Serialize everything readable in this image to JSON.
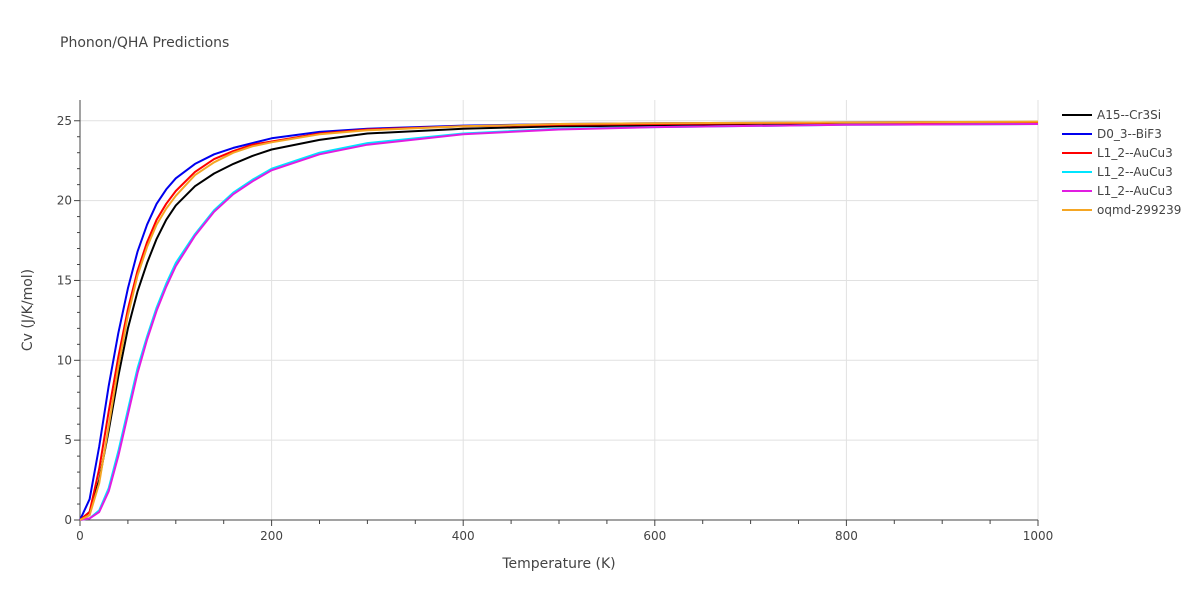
{
  "chart_data": {
    "type": "line",
    "title": "Phonon/QHA Predictions",
    "xlabel": "Temperature (K)",
    "ylabel": "Cv (J/K/mol)",
    "xlim": [
      0,
      1000
    ],
    "ylim": [
      0,
      26.3
    ],
    "xticks": [
      0,
      200,
      400,
      600,
      800,
      1000
    ],
    "yticks": [
      0,
      5,
      10,
      15,
      20,
      25
    ],
    "grid": true,
    "legend_position": "top-right",
    "series": [
      {
        "name": "A15--Cr3Si",
        "color": "#000000",
        "x": [
          0,
          10,
          20,
          30,
          40,
          50,
          60,
          70,
          80,
          90,
          100,
          120,
          140,
          160,
          180,
          200,
          250,
          300,
          400,
          500,
          600,
          800,
          1000
        ],
        "y": [
          0,
          0.5,
          2.5,
          5.6,
          9.0,
          12.0,
          14.3,
          16.1,
          17.6,
          18.8,
          19.7,
          20.9,
          21.7,
          22.3,
          22.8,
          23.2,
          23.8,
          24.2,
          24.5,
          24.65,
          24.7,
          24.8,
          24.85
        ]
      },
      {
        "name": "D0_3--BiF3",
        "color": "#0000ee",
        "x": [
          0,
          10,
          20,
          30,
          40,
          50,
          60,
          70,
          80,
          90,
          100,
          120,
          140,
          160,
          180,
          200,
          250,
          300,
          400,
          500,
          600,
          800,
          1000
        ],
        "y": [
          0,
          1.3,
          4.6,
          8.4,
          11.7,
          14.5,
          16.8,
          18.5,
          19.8,
          20.7,
          21.4,
          22.3,
          22.9,
          23.3,
          23.6,
          23.9,
          24.3,
          24.5,
          24.7,
          24.8,
          24.85,
          24.9,
          24.92
        ]
      },
      {
        "name": "L1_2--AuCu3",
        "color": "#ff0000",
        "x": [
          0,
          10,
          20,
          30,
          40,
          50,
          60,
          70,
          80,
          90,
          100,
          120,
          140,
          160,
          180,
          200,
          250,
          300,
          400,
          500,
          600,
          800,
          1000
        ],
        "y": [
          0,
          0.5,
          3.2,
          6.8,
          10.2,
          13.2,
          15.6,
          17.4,
          18.8,
          19.8,
          20.6,
          21.8,
          22.6,
          23.1,
          23.5,
          23.7,
          24.2,
          24.45,
          24.65,
          24.75,
          24.8,
          24.88,
          24.9
        ]
      },
      {
        "name": "L1_2--AuCu3",
        "color": "#00e5ff",
        "x": [
          0,
          10,
          20,
          30,
          40,
          50,
          60,
          70,
          80,
          90,
          100,
          120,
          140,
          160,
          180,
          200,
          250,
          300,
          400,
          500,
          600,
          800,
          1000
        ],
        "y": [
          0,
          0.1,
          0.6,
          2.0,
          4.3,
          6.9,
          9.5,
          11.5,
          13.3,
          14.8,
          16.1,
          17.9,
          19.4,
          20.5,
          21.3,
          22.0,
          23.0,
          23.6,
          24.2,
          24.5,
          24.6,
          24.75,
          24.8
        ]
      },
      {
        "name": "L1_2--AuCu3",
        "color": "#e11de1",
        "x": [
          0,
          10,
          20,
          30,
          40,
          50,
          60,
          70,
          80,
          90,
          100,
          120,
          140,
          160,
          180,
          200,
          250,
          300,
          400,
          500,
          600,
          800,
          1000
        ],
        "y": [
          0,
          0.1,
          0.5,
          1.8,
          4.0,
          6.6,
          9.2,
          11.3,
          13.1,
          14.6,
          15.9,
          17.8,
          19.3,
          20.4,
          21.2,
          21.9,
          22.9,
          23.5,
          24.15,
          24.45,
          24.6,
          24.75,
          24.8
        ]
      },
      {
        "name": "oqmd-299239",
        "color": "#f5a623",
        "x": [
          0,
          10,
          20,
          30,
          40,
          50,
          60,
          70,
          80,
          90,
          100,
          120,
          140,
          160,
          180,
          200,
          250,
          300,
          400,
          500,
          600,
          800,
          1000
        ],
        "y": [
          0,
          0.3,
          2.3,
          5.9,
          9.6,
          12.8,
          15.3,
          17.1,
          18.5,
          19.5,
          20.3,
          21.6,
          22.4,
          23.0,
          23.4,
          23.65,
          24.15,
          24.4,
          24.65,
          24.8,
          24.85,
          24.9,
          24.95
        ]
      }
    ]
  }
}
